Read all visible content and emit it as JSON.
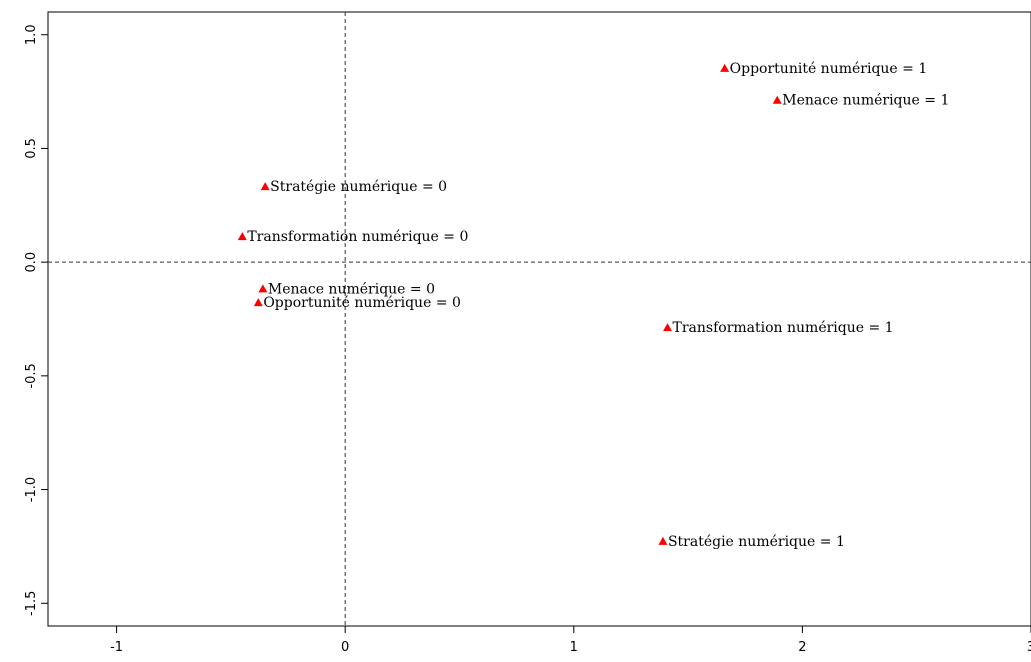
{
  "chart_data": {
    "type": "scatter",
    "title": "",
    "xlabel": "",
    "ylabel": "",
    "xlim": [
      -1.3,
      3.0
    ],
    "ylim": [
      -1.6,
      1.1
    ],
    "x_ticks": [
      -1,
      0,
      1,
      2,
      3
    ],
    "y_ticks": [
      -1.5,
      -1.0,
      -0.5,
      0.0,
      0.5,
      1.0
    ],
    "x_tick_labels": [
      "-1",
      "0",
      "1",
      "2",
      "3"
    ],
    "y_tick_labels": [
      "-1.5",
      "-1.0",
      "-0.5",
      "0.0",
      "0.5",
      "1.0"
    ],
    "reference_lines": {
      "x": 0,
      "y": 0,
      "style": "dashed"
    },
    "marker": {
      "shape": "triangle",
      "color": "#ff0000"
    },
    "points": [
      {
        "x": 1.66,
        "y": 0.85,
        "label": "Opportunité numérique  = 1"
      },
      {
        "x": 1.89,
        "y": 0.71,
        "label": "Menace numérique  = 1"
      },
      {
        "x": -0.35,
        "y": 0.33,
        "label": "Stratégie numérique  = 0"
      },
      {
        "x": -0.45,
        "y": 0.11,
        "label": "Transformation numérique  = 0"
      },
      {
        "x": -0.36,
        "y": -0.12,
        "label": "Menace numérique  = 0"
      },
      {
        "x": -0.38,
        "y": -0.18,
        "label": "Opportunité numérique  = 0"
      },
      {
        "x": 1.41,
        "y": -0.29,
        "label": "Transformation numérique  = 1"
      },
      {
        "x": 1.39,
        "y": -1.23,
        "label": "Stratégie numérique  = 1"
      }
    ]
  }
}
